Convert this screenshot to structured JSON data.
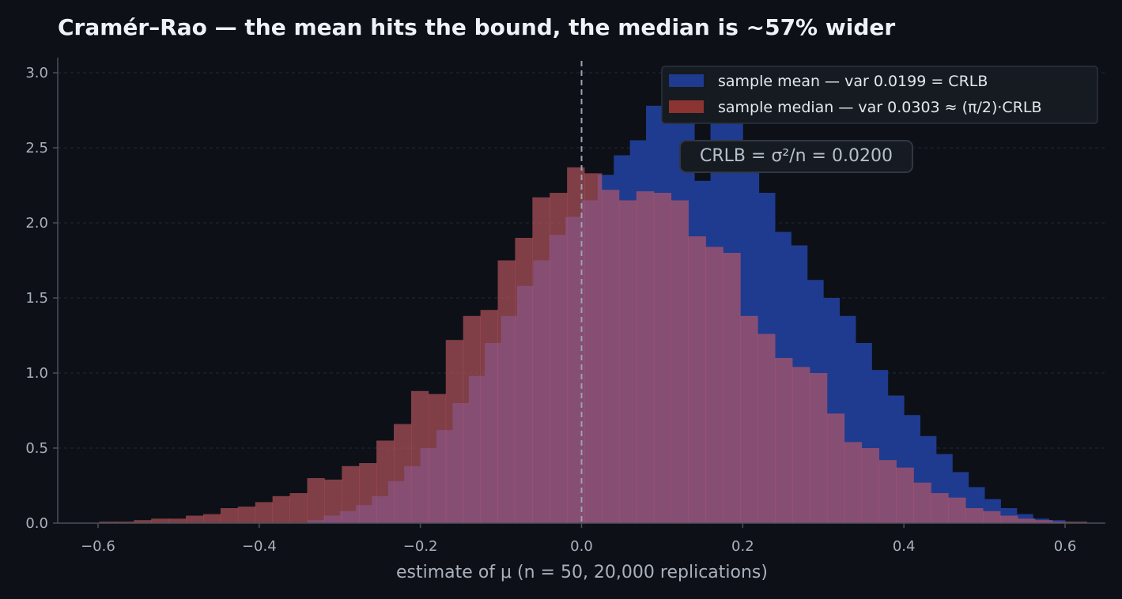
{
  "chart_data": {
    "type": "bar",
    "title": "Cramér–Rao — the mean hits the bound, the median is ~57% wider",
    "xlabel": "estimate of μ (n = 50, 20,000 replications)",
    "ylabel": "",
    "xlim": [
      -0.65,
      0.65
    ],
    "ylim": [
      0,
      3.1
    ],
    "grid": "horizontal dashed",
    "legend_position": "top-right",
    "x_ticks": [
      {
        "value": -0.6,
        "label": "−0.6"
      },
      {
        "value": -0.4,
        "label": "−0.4"
      },
      {
        "value": -0.2,
        "label": "−0.2"
      },
      {
        "value": 0.0,
        "label": "0.0"
      },
      {
        "value": 0.2,
        "label": "0.2"
      },
      {
        "value": 0.4,
        "label": "0.4"
      },
      {
        "value": 0.6,
        "label": "0.6"
      }
    ],
    "y_ticks": [
      {
        "value": 0.0,
        "label": "0.0"
      },
      {
        "value": 0.5,
        "label": "0.5"
      },
      {
        "value": 1.0,
        "label": "1.0"
      },
      {
        "value": 1.5,
        "label": "1.5"
      },
      {
        "value": 2.0,
        "label": "2.0"
      },
      {
        "value": 2.5,
        "label": "2.5"
      },
      {
        "value": 3.0,
        "label": "3.0"
      }
    ],
    "reference_line": {
      "x": 0.0,
      "style": "dashed",
      "color": "#9aa3ae"
    },
    "annotation": "CRLB = σ²/n = 0.0200",
    "series": [
      {
        "name": "sample mean — var 0.0199 = CRLB",
        "color": "#1f3b8f",
        "bin_start": -0.34,
        "bin_width": 0.02,
        "values": [
          0.02,
          0.05,
          0.08,
          0.12,
          0.18,
          0.28,
          0.38,
          0.5,
          0.62,
          0.8,
          0.98,
          1.2,
          1.38,
          1.58,
          1.75,
          1.92,
          2.04,
          2.15,
          2.32,
          2.45,
          2.55,
          2.78,
          2.86,
          2.92,
          2.28,
          2.8,
          2.66,
          2.48,
          2.2,
          1.94,
          1.85,
          1.62,
          1.5,
          1.38,
          1.2,
          1.02,
          0.85,
          0.72,
          0.58,
          0.46,
          0.34,
          0.24,
          0.16,
          0.1,
          0.06,
          0.03,
          0.02
        ]
      },
      {
        "name": "sample median — var 0.0303 ≈ (π/2)·CRLB",
        "color": "#8b3431",
        "bin_start": -0.62,
        "bin_width": 0.0215,
        "values": [
          0.0,
          0.01,
          0.01,
          0.02,
          0.03,
          0.03,
          0.05,
          0.06,
          0.1,
          0.11,
          0.14,
          0.18,
          0.2,
          0.3,
          0.29,
          0.38,
          0.4,
          0.55,
          0.66,
          0.88,
          0.86,
          1.22,
          1.38,
          1.42,
          1.75,
          1.9,
          2.17,
          2.2,
          2.37,
          2.33,
          2.22,
          2.15,
          2.21,
          2.2,
          2.15,
          1.91,
          1.84,
          1.8,
          1.38,
          1.26,
          1.1,
          1.04,
          1.0,
          0.73,
          0.54,
          0.5,
          0.42,
          0.37,
          0.27,
          0.2,
          0.17,
          0.1,
          0.08,
          0.05,
          0.03,
          0.02,
          0.01,
          0.01,
          0.0,
          0.0
        ]
      }
    ]
  },
  "colors": {
    "background": "#0d1017",
    "mean_fill": "#1f3b8f",
    "median_fill": "#8b3431",
    "overlap_fill": "#9b4a6e",
    "text": "#a9b1bc",
    "title": "#eef1f5"
  }
}
